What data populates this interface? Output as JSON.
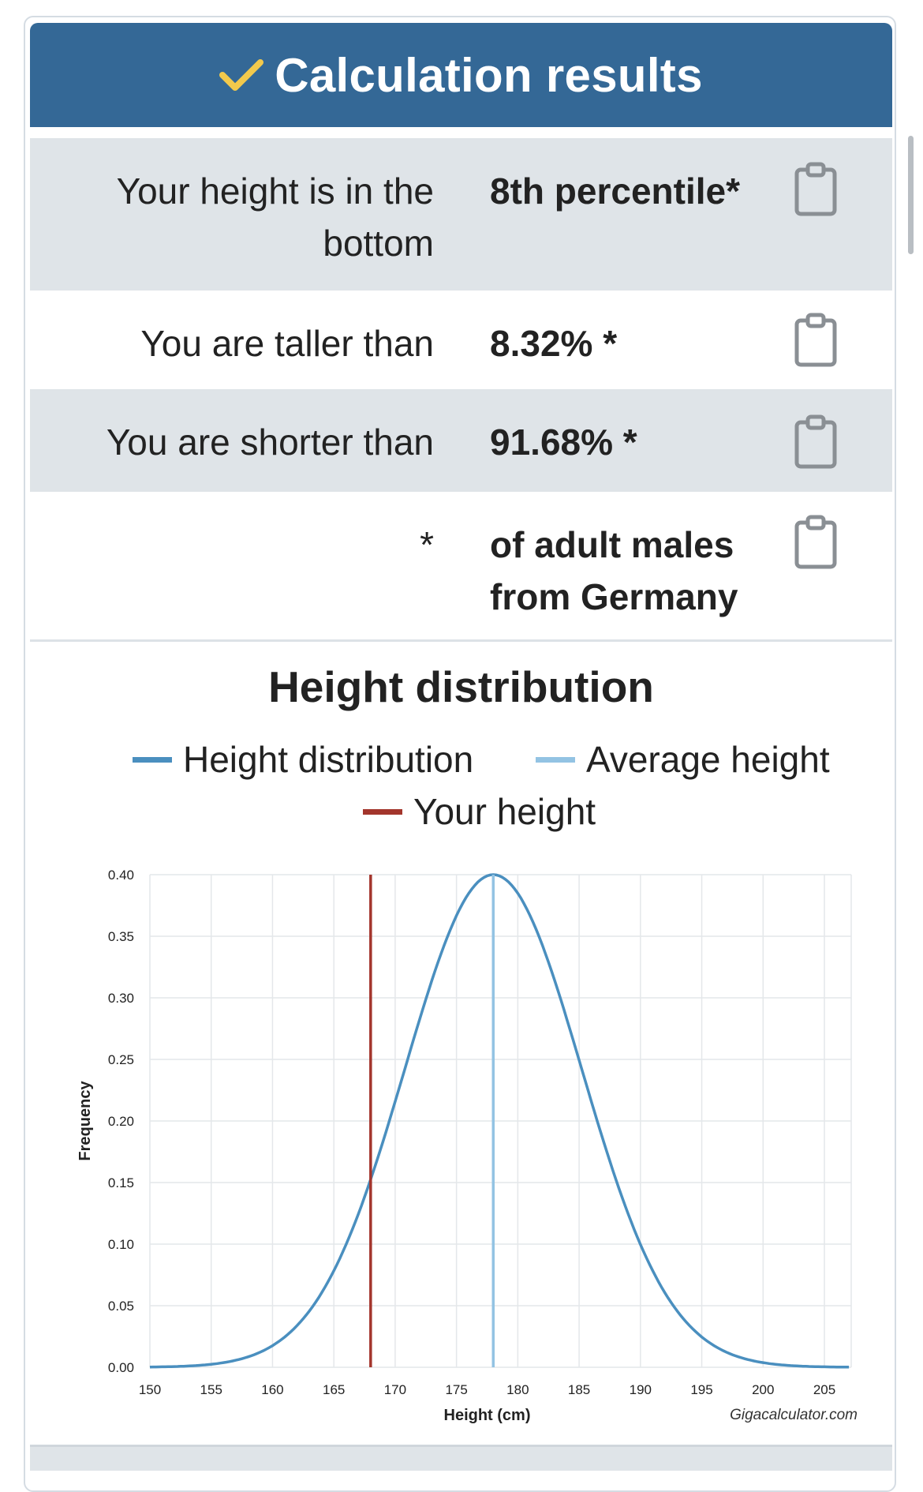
{
  "header": {
    "title": "Calculation results",
    "icon": "checkmark-icon",
    "color": "#346896",
    "check_color": "#f2c94c"
  },
  "results": [
    {
      "label": "Your height is in the bottom",
      "value": "8th percentile*",
      "icon": "clipboard-icon"
    },
    {
      "label": "You are taller than",
      "value": "8.32% *",
      "icon": "clipboard-icon"
    },
    {
      "label": "You are shorter than",
      "value": "91.68% *",
      "icon": "clipboard-icon"
    },
    {
      "label": "*",
      "value": "of adult males from Germany",
      "icon": "clipboard-icon"
    }
  ],
  "chart_data": {
    "type": "line",
    "title": "Height distribution",
    "xlabel": "Height (cm)",
    "ylabel": "Frequency",
    "credit": "Gigacalculator.com",
    "xlim": [
      150,
      207
    ],
    "ylim": [
      0,
      0.4
    ],
    "x_ticks": [
      150,
      155,
      160,
      165,
      170,
      175,
      180,
      185,
      190,
      195,
      200,
      205
    ],
    "y_ticks": [
      "0.00",
      "0.05",
      "0.10",
      "0.15",
      "0.20",
      "0.25",
      "0.30",
      "0.35",
      "0.40"
    ],
    "grid": true,
    "legend": [
      {
        "name": "Height distribution",
        "color": "#4a8fbf"
      },
      {
        "name": "Average height",
        "color": "#93c3e3"
      },
      {
        "name": "Your height",
        "color": "#a3352c"
      }
    ],
    "series": [
      {
        "name": "Height distribution",
        "kind": "normal-curve",
        "mean": 178,
        "peak": 0.4,
        "sd_cm": 7.2,
        "x_range": [
          150,
          207
        ]
      },
      {
        "name": "Average height",
        "kind": "vertical-line",
        "x": 178
      },
      {
        "name": "Your height",
        "kind": "vertical-line",
        "x": 168
      }
    ]
  }
}
